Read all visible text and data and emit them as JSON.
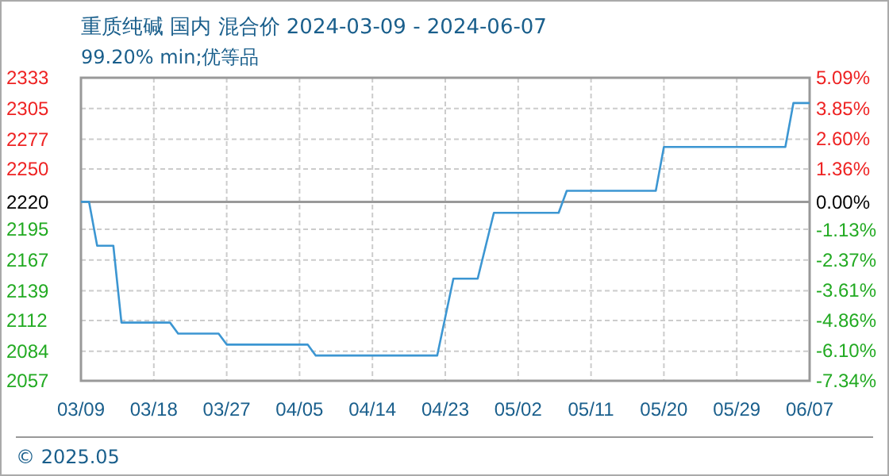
{
  "chart_data": {
    "type": "line",
    "title": "重质纯碱 国内 混合价 2024-03-09 - 2024-06-07",
    "subtitle": "99.20% min;优等品",
    "annotations": [
      "© 2025.05"
    ],
    "x": [
      "2024-03-09",
      "2024-03-10",
      "2024-03-11",
      "2024-03-13",
      "2024-03-14",
      "2024-03-20",
      "2024-03-21",
      "2024-03-26",
      "2024-03-27",
      "2024-04-06",
      "2024-04-07",
      "2024-04-22",
      "2024-04-24",
      "2024-04-27",
      "2024-04-29",
      "2024-05-07",
      "2024-05-08",
      "2024-05-19",
      "2024-05-20",
      "2024-06-04",
      "2024-06-05",
      "2024-06-07"
    ],
    "series": [
      {
        "color": "#3c96d2",
        "values": [
          2220,
          2220,
          2180,
          2180,
          2110,
          2110,
          2100,
          2100,
          2090,
          2090,
          2080,
          2080,
          2150,
          2150,
          2210,
          2210,
          2230,
          2230,
          2270,
          2270,
          2310,
          2310
        ]
      }
    ],
    "xlim": [
      "2024-03-09",
      "2024-06-07"
    ],
    "xticks": [
      {
        "value": "2024-03-09",
        "label": "03/09"
      },
      {
        "value": "2024-03-18",
        "label": "03/18"
      },
      {
        "value": "2024-03-27",
        "label": "03/27"
      },
      {
        "value": "2024-04-05",
        "label": "04/05"
      },
      {
        "value": "2024-04-14",
        "label": "04/14"
      },
      {
        "value": "2024-04-23",
        "label": "04/23"
      },
      {
        "value": "2024-05-02",
        "label": "05/02"
      },
      {
        "value": "2024-05-11",
        "label": "05/11"
      },
      {
        "value": "2024-05-20",
        "label": "05/20"
      },
      {
        "value": "2024-05-29",
        "label": "05/29"
      },
      {
        "value": "2024-06-07",
        "label": "06/07"
      }
    ],
    "ylim": [
      2057,
      2333
    ],
    "yticks": [
      2057,
      2084,
      2112,
      2139,
      2167,
      2195,
      2220,
      2250,
      2277,
      2305,
      2333
    ],
    "y2lim": [
      -7.34,
      5.09
    ],
    "y2ticks": [
      {
        "value": -7.34,
        "label": "-7.34%"
      },
      {
        "value": -6.1,
        "label": "-6.10%"
      },
      {
        "value": -4.86,
        "label": "-4.86%"
      },
      {
        "value": -3.61,
        "label": "-3.61%"
      },
      {
        "value": -2.37,
        "label": "-2.37%"
      },
      {
        "value": -1.13,
        "label": "-1.13%"
      },
      {
        "value": 0,
        "label": "0.00%"
      },
      {
        "value": 1.36,
        "label": "1.36%"
      },
      {
        "value": 2.6,
        "label": "2.60%"
      },
      {
        "value": 3.85,
        "label": "3.85%"
      },
      {
        "value": 5.09,
        "label": "5.09%"
      }
    ],
    "ref_lines": [
      {
        "axis": "y2",
        "value": 0,
        "color": "#999999"
      }
    ],
    "grid": true,
    "marker": "none",
    "line_style": "solid"
  }
}
